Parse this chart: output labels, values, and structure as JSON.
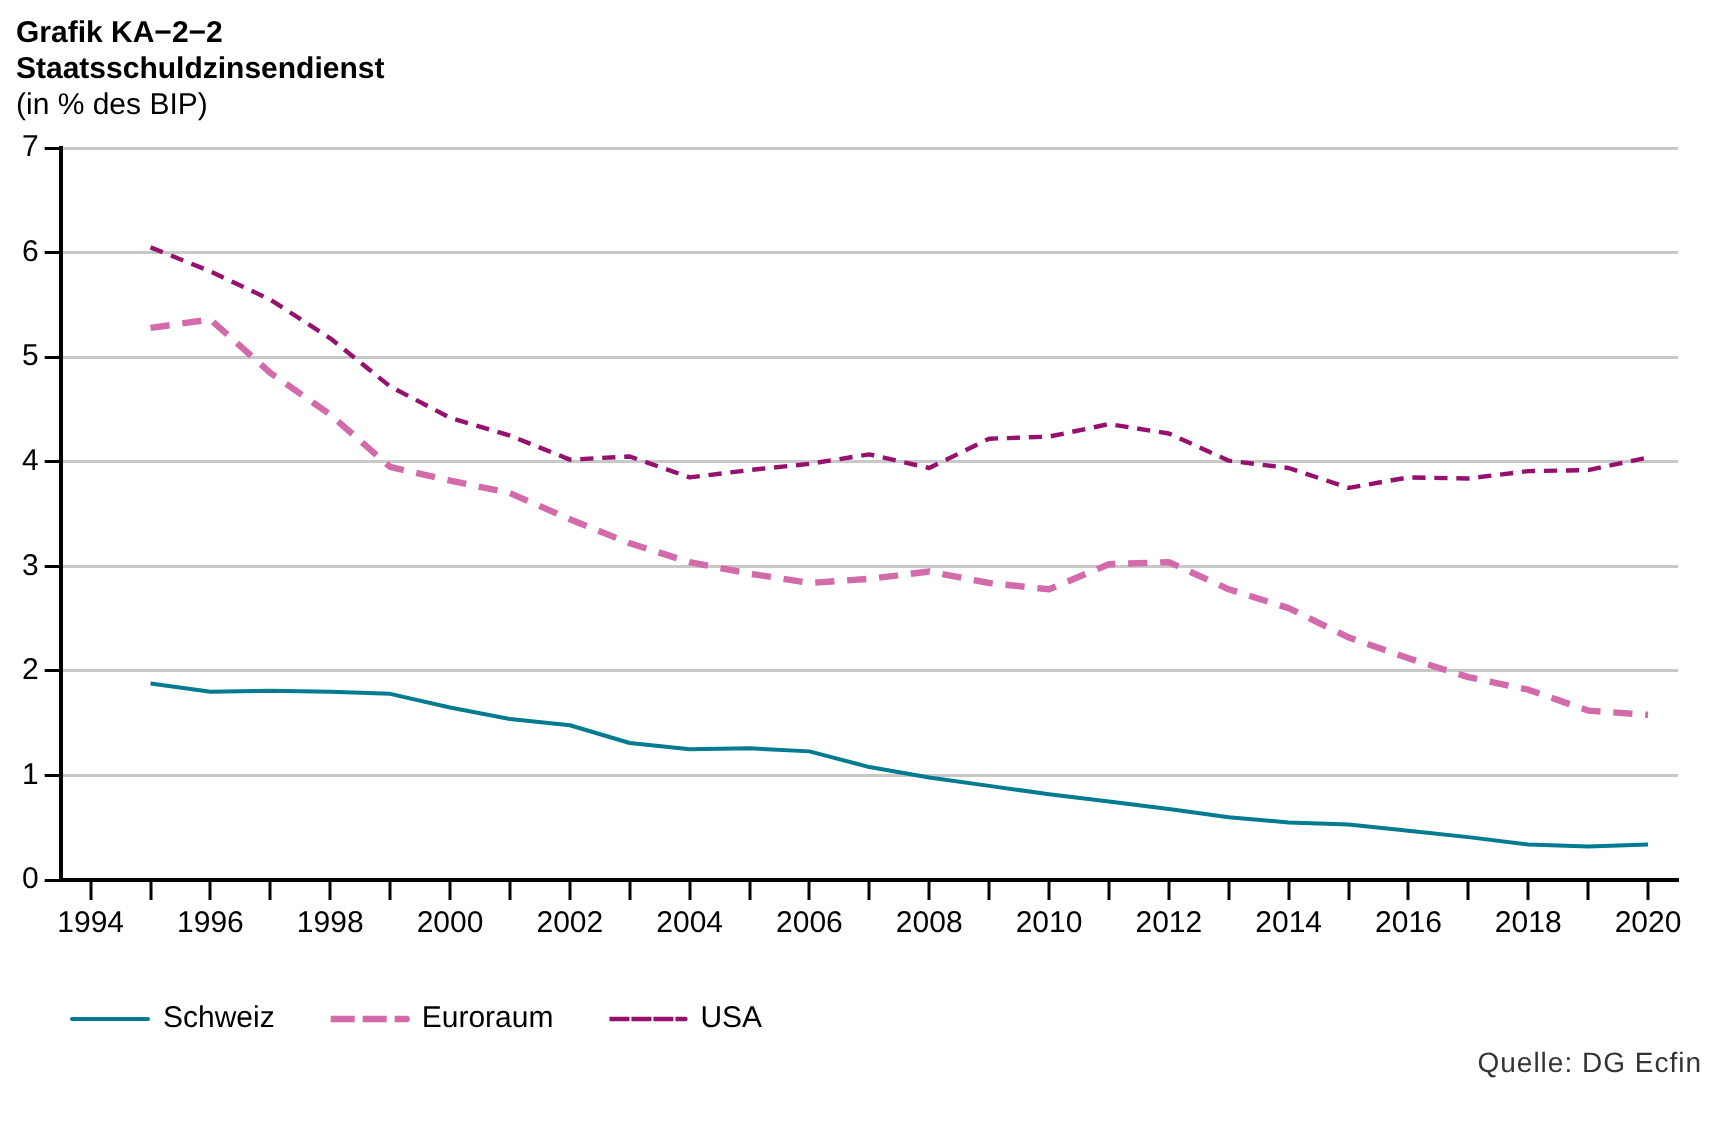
{
  "chart_data": {
    "type": "line",
    "title": "Grafik KA−2−2",
    "subtitle": "Staatsschuldzinsendienst",
    "ylabel": "(in % des BIP)",
    "x": [
      1995,
      1996,
      1997,
      1998,
      1999,
      2000,
      2001,
      2002,
      2003,
      2004,
      2005,
      2006,
      2007,
      2008,
      2009,
      2010,
      2011,
      2012,
      2013,
      2014,
      2015,
      2016,
      2017,
      2018,
      2019,
      2020
    ],
    "series": [
      {
        "name": "Schweiz",
        "color": "#007b8f",
        "line_style": "solid",
        "values": [
          1.88,
          1.8,
          1.81,
          1.8,
          1.78,
          1.65,
          1.54,
          1.48,
          1.31,
          1.25,
          1.26,
          1.23,
          1.08,
          0.98,
          0.9,
          0.82,
          0.75,
          0.68,
          0.6,
          0.55,
          0.53,
          0.47,
          0.41,
          0.34,
          0.32,
          0.34
        ]
      },
      {
        "name": "Euroraum",
        "color": "#d36aaa",
        "line_style": "dashed",
        "values": [
          5.28,
          5.36,
          4.85,
          4.45,
          3.95,
          3.82,
          3.7,
          3.45,
          3.22,
          3.04,
          2.93,
          2.84,
          2.88,
          2.95,
          2.84,
          2.78,
          3.02,
          3.04,
          2.78,
          2.6,
          2.32,
          2.12,
          1.94,
          1.82,
          1.62,
          1.58
        ]
      },
      {
        "name": "USA",
        "color": "#96106e",
        "line_style": "dashed",
        "values": [
          6.05,
          5.82,
          5.55,
          5.18,
          4.72,
          4.42,
          4.25,
          4.02,
          4.05,
          3.85,
          3.92,
          3.98,
          4.07,
          3.94,
          4.22,
          4.24,
          4.36,
          4.27,
          4.01,
          3.94,
          3.75,
          3.85,
          3.84,
          3.91,
          3.92,
          4.04
        ]
      }
    ],
    "xlim": [
      1993.5,
      2020.5
    ],
    "xticks": [
      1994,
      {
        "value": 1995,
        "label": null
      },
      1996,
      {
        "value": 1997,
        "label": null
      },
      1998,
      {
        "value": 1999,
        "label": null
      },
      2000,
      {
        "value": 2001,
        "label": null
      },
      2002,
      {
        "value": 2003,
        "label": null
      },
      2004,
      {
        "value": 2005,
        "label": null
      },
      2006,
      {
        "value": 2007,
        "label": null
      },
      2008,
      {
        "value": 2009,
        "label": null
      },
      2010,
      {
        "value": 2011,
        "label": null
      },
      2012,
      {
        "value": 2013,
        "label": null
      },
      2014,
      {
        "value": 2015,
        "label": null
      },
      2016,
      {
        "value": 2017,
        "label": null
      },
      2018,
      {
        "value": 2019,
        "label": null
      },
      2020
    ],
    "ylim": [
      0,
      7
    ],
    "yticks": [
      0,
      1,
      2,
      3,
      4,
      5,
      6,
      7
    ],
    "grid": "y",
    "legend": "bottom left",
    "marker": "none",
    "annotations": [
      "Quelle: DG Ecfin"
    ]
  }
}
